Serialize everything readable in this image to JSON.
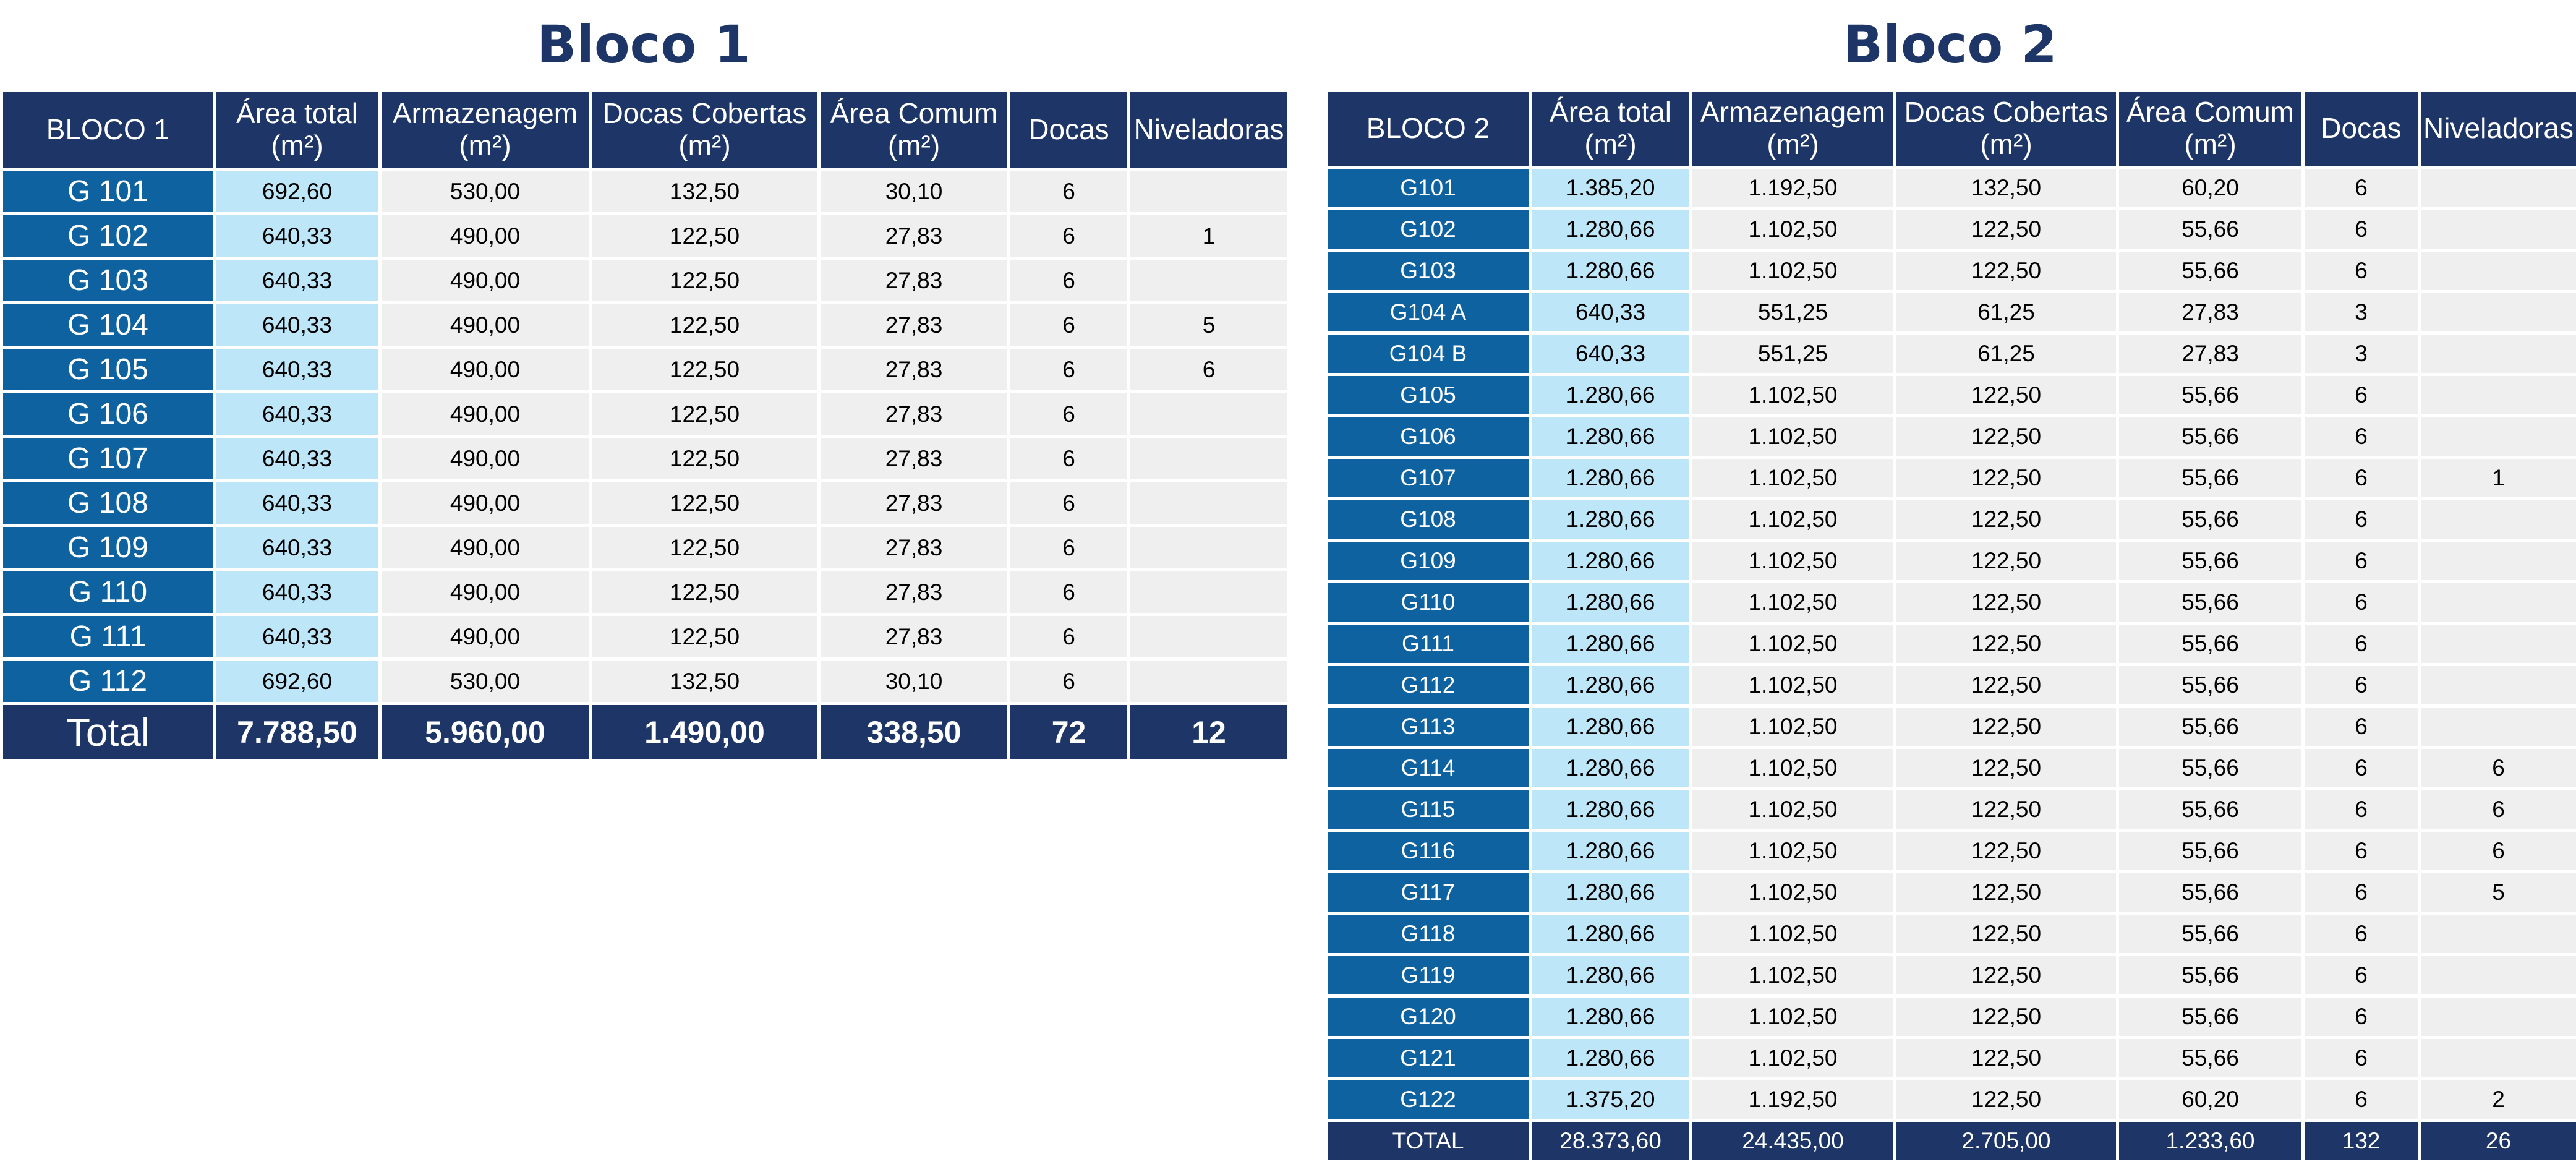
{
  "bloco1": {
    "title": "Bloco 1",
    "headers": [
      "BLOCO 1",
      "Área total (m²)",
      "Armazenagem (m²)",
      "Docas Cobertas (m²)",
      "Área Comum (m²)",
      "Docas",
      "Niveladoras"
    ],
    "rows": [
      [
        "G 101",
        "692,60",
        "530,00",
        "132,50",
        "30,10",
        "6",
        ""
      ],
      [
        "G 102",
        "640,33",
        "490,00",
        "122,50",
        "27,83",
        "6",
        "1"
      ],
      [
        "G 103",
        "640,33",
        "490,00",
        "122,50",
        "27,83",
        "6",
        ""
      ],
      [
        "G 104",
        "640,33",
        "490,00",
        "122,50",
        "27,83",
        "6",
        "5"
      ],
      [
        "G 105",
        "640,33",
        "490,00",
        "122,50",
        "27,83",
        "6",
        "6"
      ],
      [
        "G 106",
        "640,33",
        "490,00",
        "122,50",
        "27,83",
        "6",
        ""
      ],
      [
        "G 107",
        "640,33",
        "490,00",
        "122,50",
        "27,83",
        "6",
        ""
      ],
      [
        "G 108",
        "640,33",
        "490,00",
        "122,50",
        "27,83",
        "6",
        ""
      ],
      [
        "G 109",
        "640,33",
        "490,00",
        "122,50",
        "27,83",
        "6",
        ""
      ],
      [
        "G 110",
        "640,33",
        "490,00",
        "122,50",
        "27,83",
        "6",
        ""
      ],
      [
        "G 111",
        "640,33",
        "490,00",
        "122,50",
        "27,83",
        "6",
        ""
      ],
      [
        "G 112",
        "692,60",
        "530,00",
        "132,50",
        "30,10",
        "6",
        ""
      ]
    ],
    "total": [
      "Total",
      "7.788,50",
      "5.960,00",
      "1.490,00",
      "338,50",
      "72",
      "12"
    ]
  },
  "bloco2": {
    "title": "Bloco 2",
    "headers": [
      "BLOCO 2",
      "Área total (m²)",
      "Armazenagem (m²)",
      "Docas Cobertas (m²)",
      "Área Comum (m²)",
      "Docas",
      "Niveladoras"
    ],
    "rows": [
      [
        "G101",
        "1.385,20",
        "1.192,50",
        "132,50",
        "60,20",
        "6",
        ""
      ],
      [
        "G102",
        "1.280,66",
        "1.102,50",
        "122,50",
        "55,66",
        "6",
        ""
      ],
      [
        "G103",
        "1.280,66",
        "1.102,50",
        "122,50",
        "55,66",
        "6",
        ""
      ],
      [
        "G104 A",
        "640,33",
        "551,25",
        "61,25",
        "27,83",
        "3",
        ""
      ],
      [
        "G104 B",
        "640,33",
        "551,25",
        "61,25",
        "27,83",
        "3",
        ""
      ],
      [
        "G105",
        "1.280,66",
        "1.102,50",
        "122,50",
        "55,66",
        "6",
        ""
      ],
      [
        "G106",
        "1.280,66",
        "1.102,50",
        "122,50",
        "55,66",
        "6",
        ""
      ],
      [
        "G107",
        "1.280,66",
        "1.102,50",
        "122,50",
        "55,66",
        "6",
        "1"
      ],
      [
        "G108",
        "1.280,66",
        "1.102,50",
        "122,50",
        "55,66",
        "6",
        ""
      ],
      [
        "G109",
        "1.280,66",
        "1.102,50",
        "122,50",
        "55,66",
        "6",
        ""
      ],
      [
        "G110",
        "1.280,66",
        "1.102,50",
        "122,50",
        "55,66",
        "6",
        ""
      ],
      [
        "G111",
        "1.280,66",
        "1.102,50",
        "122,50",
        "55,66",
        "6",
        ""
      ],
      [
        "G112",
        "1.280,66",
        "1.102,50",
        "122,50",
        "55,66",
        "6",
        ""
      ],
      [
        "G113",
        "1.280,66",
        "1.102,50",
        "122,50",
        "55,66",
        "6",
        ""
      ],
      [
        "G114",
        "1.280,66",
        "1.102,50",
        "122,50",
        "55,66",
        "6",
        "6"
      ],
      [
        "G115",
        "1.280,66",
        "1.102,50",
        "122,50",
        "55,66",
        "6",
        "6"
      ],
      [
        "G116",
        "1.280,66",
        "1.102,50",
        "122,50",
        "55,66",
        "6",
        "6"
      ],
      [
        "G117",
        "1.280,66",
        "1.102,50",
        "122,50",
        "55,66",
        "6",
        "5"
      ],
      [
        "G118",
        "1.280,66",
        "1.102,50",
        "122,50",
        "55,66",
        "6",
        ""
      ],
      [
        "G119",
        "1.280,66",
        "1.102,50",
        "122,50",
        "55,66",
        "6",
        ""
      ],
      [
        "G120",
        "1.280,66",
        "1.102,50",
        "122,50",
        "55,66",
        "6",
        ""
      ],
      [
        "G121",
        "1.280,66",
        "1.102,50",
        "122,50",
        "55,66",
        "6",
        ""
      ],
      [
        "G122",
        "1.375,20",
        "1.192,50",
        "122,50",
        "60,20",
        "6",
        "2"
      ]
    ],
    "total": [
      "TOTAL",
      "28.373,60",
      "24.435,00",
      "2.705,00",
      "1.233,60",
      "132",
      "26"
    ]
  },
  "colors": {
    "title": "#1d3567",
    "header_bg": "#1d3567",
    "label_bg": "#0f62a0",
    "area_bg": "#bde6f8",
    "value_bg": "#efefef"
  }
}
